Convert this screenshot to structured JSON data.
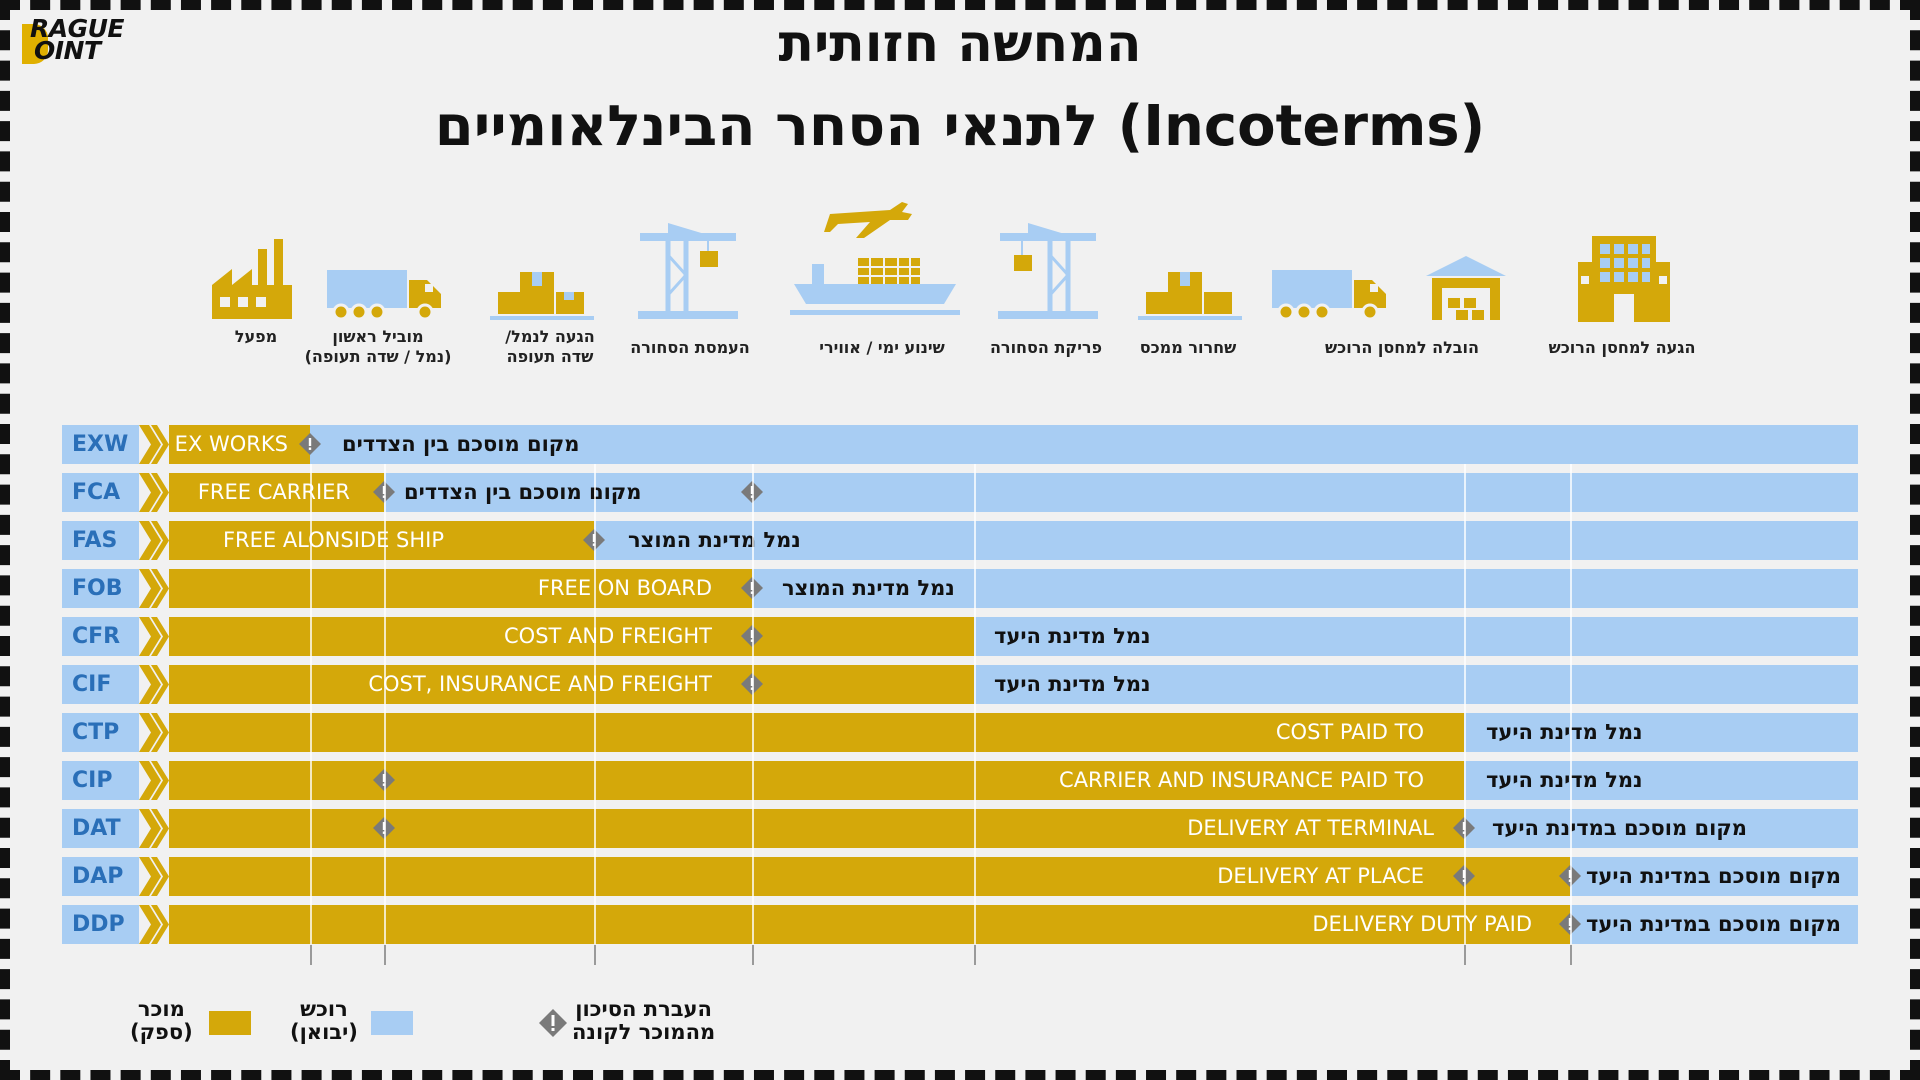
{
  "logo": {
    "line1": "RAGUE",
    "line2": "OINT"
  },
  "title": {
    "line1": "המחשה חזותית",
    "line2": "לתנאי הסחר הבינלאומיים (Incoterms)"
  },
  "stages": [
    {
      "label_l1": "מפעל",
      "label_l2": "",
      "icon": "factory-icon"
    },
    {
      "label_l1": "מוביל ראשון",
      "label_l2": "(נמל / שדה תעופה)",
      "icon": "truck-icon"
    },
    {
      "label_l1": "הגעה לנמל/",
      "label_l2": "שדה תעופה",
      "icon": "boxes-icon"
    },
    {
      "label_l1": "העמסת הסחורה",
      "label_l2": "",
      "icon": "crane-icon"
    },
    {
      "label_l1": "שינוע ימי / אווירי",
      "label_l2": "",
      "icon": "ship-plane-icon"
    },
    {
      "label_l1": "פריקת הסחורה",
      "label_l2": "",
      "icon": "crane-icon"
    },
    {
      "label_l1": "שחרור ממכס",
      "label_l2": "",
      "icon": "boxes-icon"
    },
    {
      "label_l1": "הובלה למחסן הרוכש",
      "label_l2": "",
      "icon": "truck-warehouse-icon"
    },
    {
      "label_l1": "הגעה למחסן הרוכש",
      "label_l2": "",
      "icon": "building-icon"
    }
  ],
  "terms": [
    {
      "code": "EXW",
      "seller_label": "EX WORKS",
      "place": "מקום מוסכם בין הצדדים"
    },
    {
      "code": "FCA",
      "seller_label": "FREE CARRIER",
      "place": "מקום מוסכם בין הצדדים"
    },
    {
      "code": "FAS",
      "seller_label": "FREE ALONSIDE SHIP",
      "place": "נמל מדינת המוצר"
    },
    {
      "code": "FOB",
      "seller_label": "FREE ON BOARD",
      "place": "נמל מדינת המוצר"
    },
    {
      "code": "CFR",
      "seller_label": "COST AND FREIGHT",
      "place": "נמל מדינת היעד"
    },
    {
      "code": "CIF",
      "seller_label": "COST, INSURANCE AND FREIGHT",
      "place": "נמל מדינת היעד"
    },
    {
      "code": "CTP",
      "seller_label": "COST PAID TO",
      "place": "נמל מדינת היעד"
    },
    {
      "code": "CIP",
      "seller_label": "CARRIER AND INSURANCE PAID TO",
      "place": "נמל מדינת היעד"
    },
    {
      "code": "DAT",
      "seller_label": "DELIVERY AT TERMINAL",
      "place": "מקום מוסכם במדינת היעד"
    },
    {
      "code": "DAP",
      "seller_label": "DELIVERY AT PLACE",
      "place": "מקום מוסכם במדינת היעד"
    },
    {
      "code": "DDP",
      "seller_label": "DELIVERY DUTY PAID",
      "place": "מקום מוסכם במדינת היעד"
    }
  ],
  "legend": {
    "seller_l1": "מוכר",
    "seller_l2": "(ספק)",
    "buyer_l1": "רוכש",
    "buyer_l2": "(יבואן)",
    "risk_l1": "העברת הסיכון",
    "risk_l2": "מהמוכר לקונה"
  },
  "colors": {
    "seller": "#d4a80a",
    "buyer": "#a8cdf3",
    "code_text": "#2a6fb8",
    "diamond": "#7a7a7a"
  }
}
